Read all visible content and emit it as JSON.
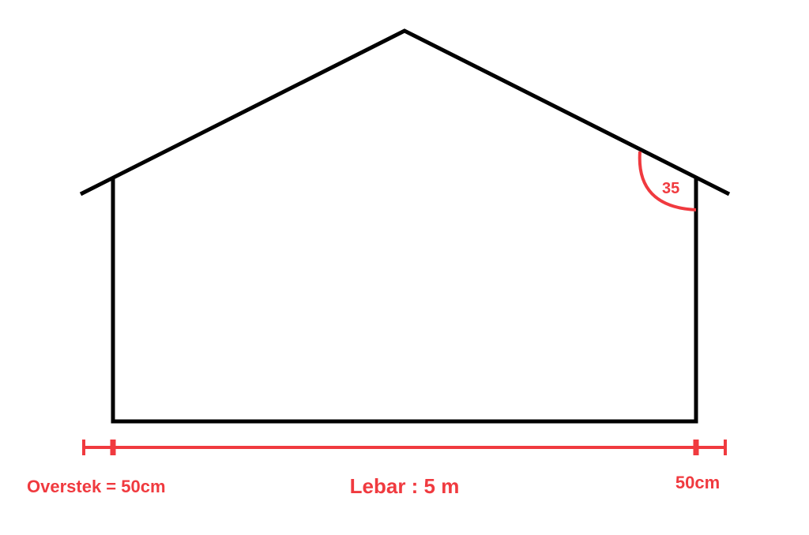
{
  "angle_label": "35",
  "overhang_left_label": "Overstek = 50cm",
  "width_label": "Lebar : 5 m",
  "overhang_right_label": "50cm"
}
